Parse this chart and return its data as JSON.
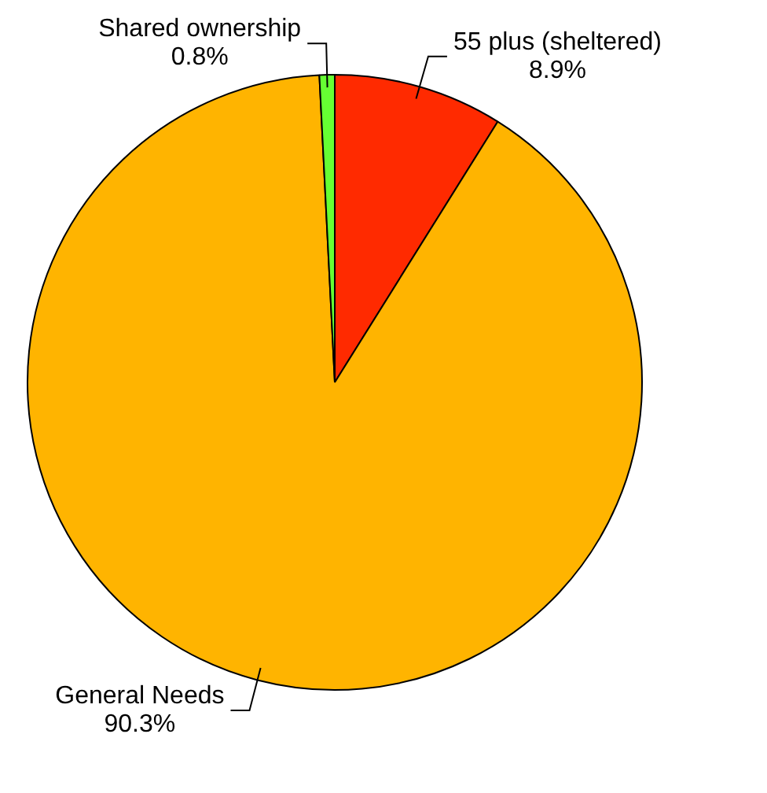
{
  "chart_data": {
    "type": "pie",
    "categories": [
      "55 plus (sheltered)",
      "General Needs",
      "Shared ownership"
    ],
    "values": [
      8.9,
      90.3,
      0.8
    ],
    "value_labels": [
      "8.9%",
      "90.3%",
      "0.8%"
    ],
    "colors": [
      "#ff2a00",
      "#ffb400",
      "#66ff33"
    ],
    "legend": false
  }
}
